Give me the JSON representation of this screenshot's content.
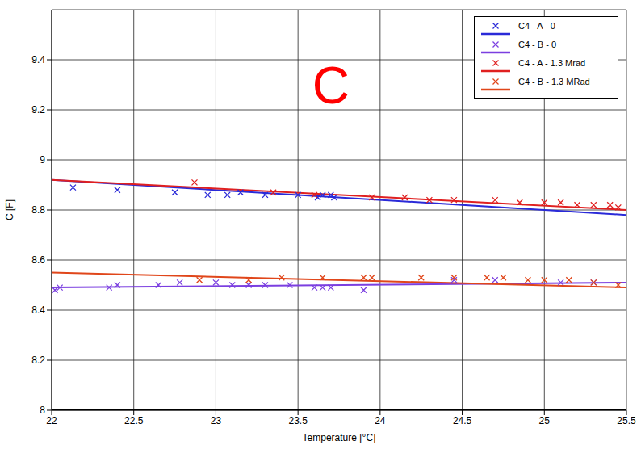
{
  "chart_data": {
    "type": "scatter",
    "x_label": "Temperature [°C]",
    "y_label": "C [F]",
    "xlim": [
      22,
      25.5
    ],
    "xticks": [
      22,
      22.5,
      23,
      23.5,
      24,
      24.5,
      25,
      25.5
    ],
    "ylim": [
      8,
      9.6
    ],
    "yticks": [
      8,
      8.2,
      8.4,
      8.6,
      8.8,
      9,
      9.2,
      9.4
    ],
    "grid": true,
    "legend": "upper right",
    "annotations": [
      {
        "text": "C",
        "x": 23.7,
        "y": 9.3,
        "color": "#ff0000"
      }
    ],
    "series": [
      {
        "name": "C4 - A - 0",
        "color": "#2a2ad8",
        "marker": "x",
        "x": [
          22.13,
          22.4,
          22.75,
          22.95,
          23.07,
          23.15,
          23.3,
          23.5,
          23.62,
          23.65,
          23.7,
          23.72
        ],
        "values": [
          8.89,
          8.88,
          8.87,
          8.86,
          8.86,
          8.87,
          8.86,
          8.86,
          8.85,
          8.86,
          8.86,
          8.85
        ],
        "fit": {
          "x": [
            22,
            25.5
          ],
          "values": [
            8.92,
            8.78
          ]
        }
      },
      {
        "name": "C4 - B - 0",
        "color": "#7b3fe0",
        "marker": "x",
        "x": [
          22.02,
          22.05,
          22.35,
          22.4,
          22.65,
          22.78,
          23.0,
          23.1,
          23.2,
          23.3,
          23.45,
          23.6,
          23.65,
          23.7,
          23.9,
          24.45,
          24.7,
          25.1,
          25.3
        ],
        "values": [
          8.48,
          8.49,
          8.49,
          8.5,
          8.5,
          8.51,
          8.51,
          8.5,
          8.5,
          8.5,
          8.5,
          8.49,
          8.49,
          8.49,
          8.48,
          8.52,
          8.52,
          8.51,
          8.51
        ],
        "fit": {
          "x": [
            22,
            25.5
          ],
          "values": [
            8.49,
            8.51
          ]
        }
      },
      {
        "name": "C4 - A - 1.3 Mrad",
        "color": "#e02020",
        "marker": "x",
        "x": [
          22.87,
          23.35,
          23.6,
          23.95,
          24.15,
          24.3,
          24.45,
          24.7,
          24.85,
          25.0,
          25.1,
          25.2,
          25.3,
          25.4,
          25.45
        ],
        "values": [
          8.91,
          8.87,
          8.86,
          8.85,
          8.85,
          8.84,
          8.84,
          8.84,
          8.83,
          8.83,
          8.83,
          8.82,
          8.82,
          8.82,
          8.81
        ],
        "fit": {
          "x": [
            22,
            25.5
          ],
          "values": [
            8.92,
            8.8
          ]
        }
      },
      {
        "name": "C4 - B - 1.3 MRad",
        "color": "#e0461a",
        "marker": "x",
        "x": [
          22.9,
          23.2,
          23.4,
          23.65,
          23.9,
          23.95,
          24.25,
          24.45,
          24.65,
          24.75,
          24.9,
          25.0,
          25.15,
          25.3,
          25.45
        ],
        "values": [
          8.52,
          8.52,
          8.53,
          8.53,
          8.53,
          8.53,
          8.53,
          8.53,
          8.53,
          8.53,
          8.52,
          8.52,
          8.52,
          8.51,
          8.5
        ],
        "fit": {
          "x": [
            22,
            25.5
          ],
          "values": [
            8.55,
            8.49
          ]
        }
      }
    ]
  }
}
